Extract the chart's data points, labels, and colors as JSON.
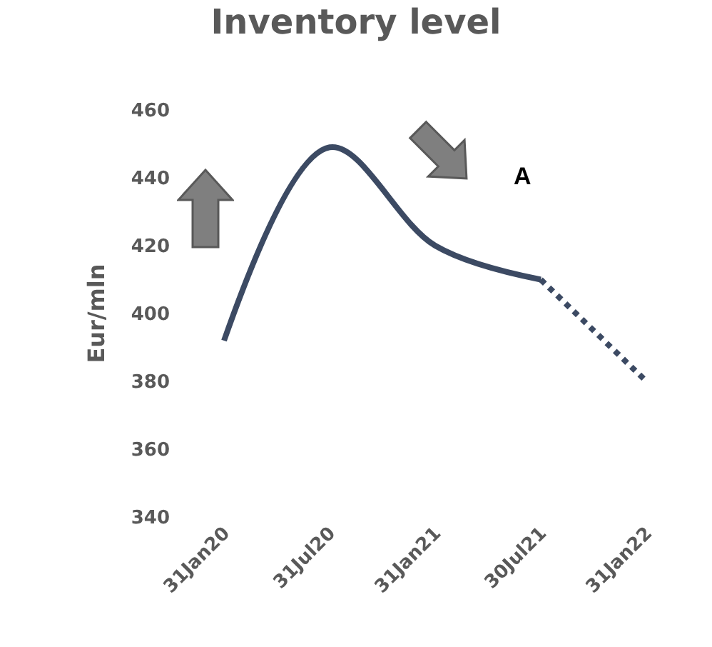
{
  "chart_data": {
    "type": "line",
    "title": "Inventory level",
    "ylabel": "Eur/mln",
    "categories": [
      "31Jan20",
      "31Jul20",
      "31Jan21",
      "30Jul21",
      "31Jan22"
    ],
    "series": [
      {
        "color": "#3c4a63",
        "values": [
          392,
          449,
          420,
          410,
          null
        ],
        "line_style": "solid"
      },
      {
        "color": "#3c4a63",
        "values": [
          null,
          null,
          null,
          410,
          380
        ],
        "line_style": "dotted"
      }
    ],
    "ylim": [
      340,
      460
    ],
    "yticks": [
      340,
      360,
      380,
      400,
      420,
      440,
      460
    ],
    "grid": false,
    "marker": "none",
    "annotations": [
      "A"
    ]
  }
}
